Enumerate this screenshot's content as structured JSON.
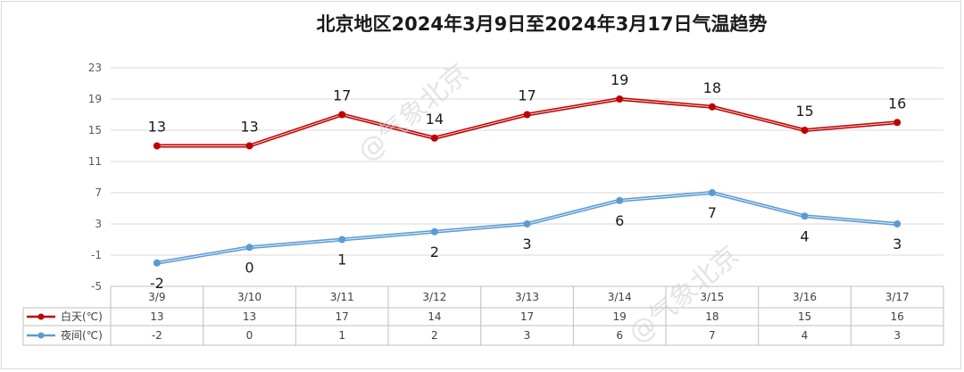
{
  "chart_data": {
    "type": "line",
    "title": "北京地区2024年3月9日至2024年3月17日气温趋势",
    "categories": [
      "3/9",
      "3/10",
      "3/11",
      "3/12",
      "3/13",
      "3/14",
      "3/15",
      "3/16",
      "3/17"
    ],
    "series": [
      {
        "name": "白天(℃)",
        "values": [
          13,
          13,
          17,
          14,
          17,
          19,
          18,
          15,
          16
        ],
        "color": "#c00000"
      },
      {
        "name": "夜间(℃)",
        "values": [
          -2,
          0,
          1,
          2,
          3,
          6,
          7,
          4,
          3
        ],
        "color": "#5b9bd5"
      }
    ],
    "yticks": [
      -5,
      -1,
      3,
      7,
      11,
      15,
      19,
      23
    ],
    "ylim": [
      -5,
      23
    ],
    "grid": true,
    "legend": "data-table-left",
    "data_table": true
  },
  "watermark": {
    "text1": "@气象北京",
    "text2": "@气象北京"
  }
}
